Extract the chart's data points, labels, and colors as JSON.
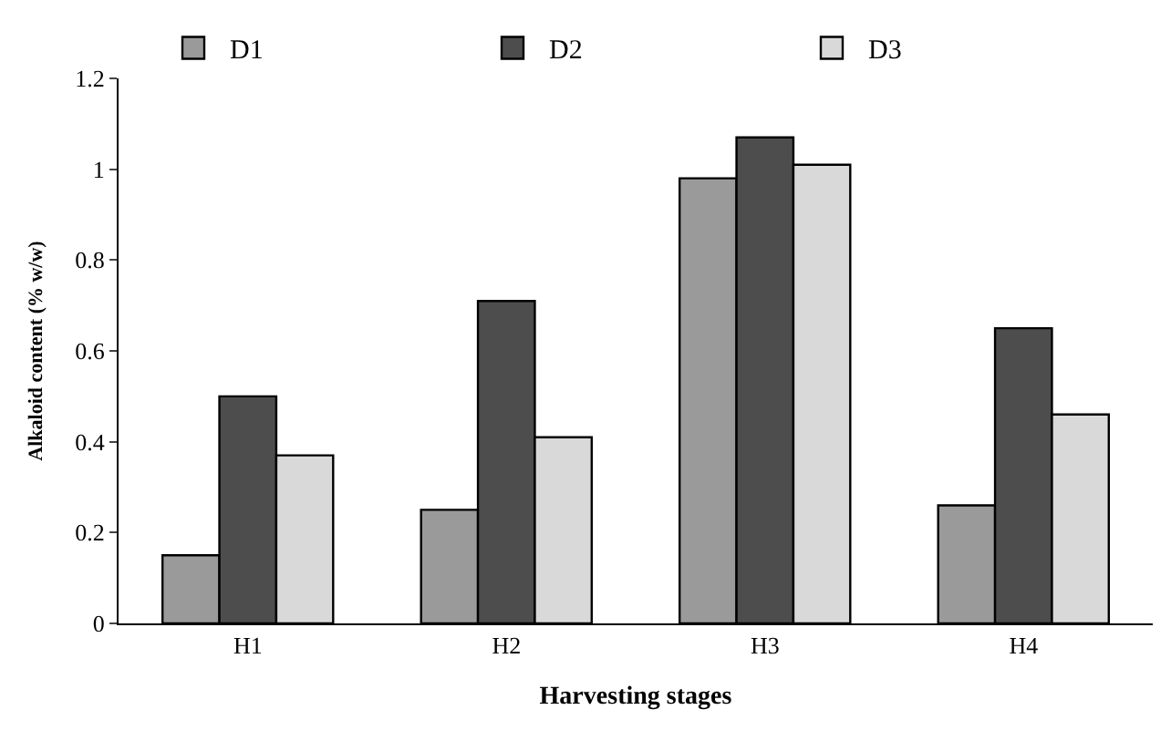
{
  "chart_data": {
    "type": "bar",
    "xlabel": "Harvesting stages",
    "ylabel": "Alkaloid content (% w/w)",
    "categories": [
      "H1",
      "H2",
      "H3",
      "H4"
    ],
    "series": [
      {
        "name": "D1",
        "color": "#9a9a9a",
        "values": [
          0.15,
          0.25,
          0.98,
          0.26
        ]
      },
      {
        "name": "D2",
        "color": "#4d4d4d",
        "values": [
          0.5,
          0.71,
          1.07,
          0.65
        ]
      },
      {
        "name": "D3",
        "color": "#d9d9d9",
        "values": [
          0.37,
          0.41,
          1.01,
          0.46
        ]
      }
    ],
    "ylim": [
      0,
      1.2
    ],
    "yticks": [
      0,
      0.2,
      0.4,
      0.6,
      0.8,
      1,
      1.2
    ],
    "legend": "top"
  }
}
